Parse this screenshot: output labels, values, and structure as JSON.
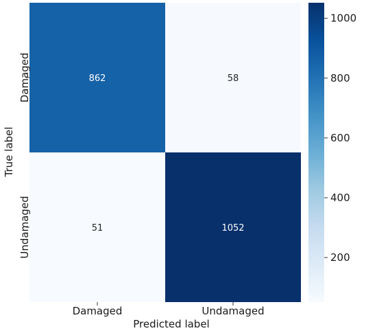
{
  "chart_data": {
    "type": "heatmap",
    "title": "",
    "xlabel": "Predicted label",
    "ylabel": "True label",
    "x_categories": [
      "Damaged",
      "Undamaged"
    ],
    "y_categories": [
      "Damaged",
      "Undamaged"
    ],
    "values": [
      [
        862,
        58
      ],
      [
        51,
        1052
      ]
    ],
    "colormap": "Blues",
    "colorbar": {
      "range": [
        51,
        1052
      ],
      "ticks": [
        200,
        400,
        600,
        800,
        1000
      ],
      "tick_labels": [
        "200",
        "400",
        "600",
        "800",
        "1000"
      ]
    },
    "colors": {
      "low": "#f7fbff",
      "high": "#08306b",
      "text_dark_cell": "#ffffff",
      "text_light_cell": "#262626"
    },
    "legend": "colorbar-right",
    "grid": false
  }
}
